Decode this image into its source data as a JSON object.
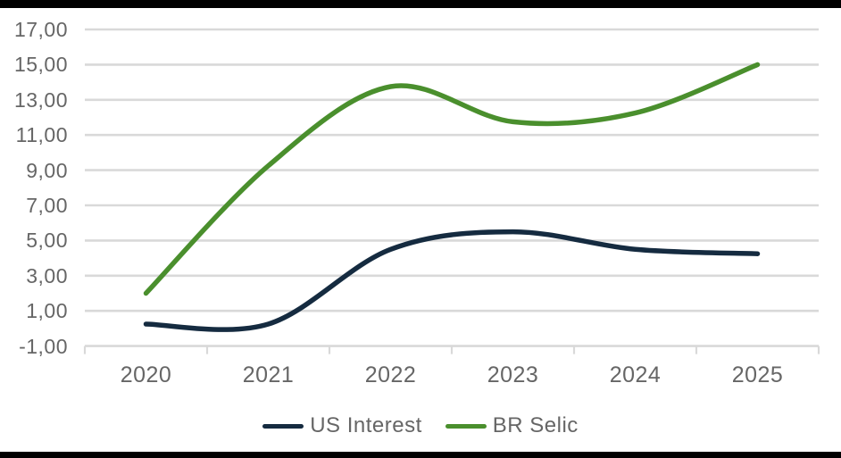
{
  "chart": {
    "y_tick_labels": [
      "17,00",
      "15,00",
      "13,00",
      "11,00",
      "9,00",
      "7,00",
      "5,00",
      "3,00",
      "1,00",
      "-1,00"
    ],
    "x_tick_labels": [
      "2020",
      "2021",
      "2022",
      "2023",
      "2024",
      "2025"
    ]
  },
  "chart_data": {
    "type": "line",
    "title": "",
    "xlabel": "",
    "ylabel": "",
    "categories": [
      "2020",
      "2021",
      "2022",
      "2023",
      "2024",
      "2025"
    ],
    "series": [
      {
        "name": "US Interest",
        "color": "#152b40",
        "values": [
          0.25,
          0.25,
          4.5,
          5.5,
          4.5,
          4.25
        ]
      },
      {
        "name": "BR Selic",
        "color": "#4a8f2d",
        "values": [
          2.0,
          9.25,
          13.75,
          11.75,
          12.25,
          15.0
        ]
      }
    ],
    "ylim": [
      -1,
      17
    ],
    "y_step": 2,
    "number_format": "decimal-comma",
    "grid": "horizontal",
    "smooth": true,
    "legend_position": "bottom"
  },
  "legend": {
    "items": [
      {
        "label": "US Interest",
        "color": "#152b40"
      },
      {
        "label": "BR Selic",
        "color": "#4a8f2d"
      }
    ]
  },
  "colors": {
    "gridline": "#d9d9d9",
    "axis_text": "#666666",
    "edge_bars": "#000000"
  }
}
